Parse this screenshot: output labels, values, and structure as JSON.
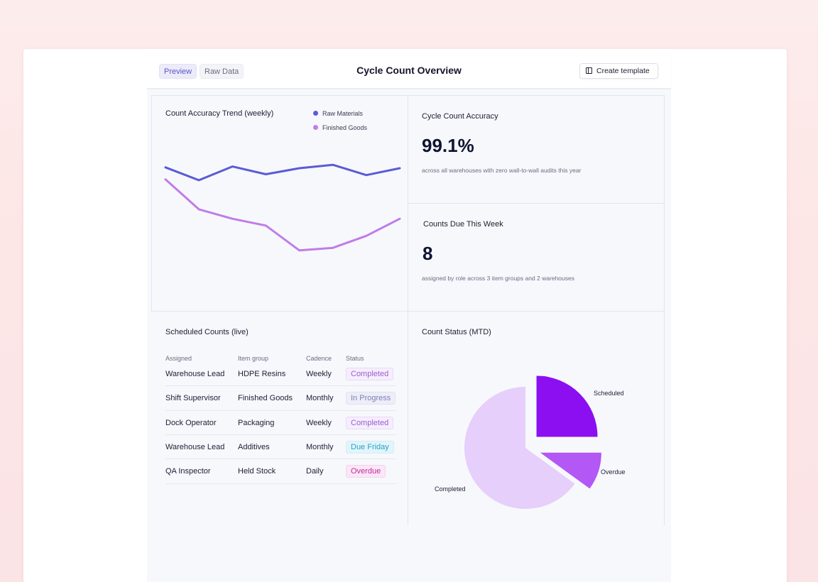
{
  "header": {
    "tabs": [
      {
        "label": "Preview",
        "active": true
      },
      {
        "label": "Raw Data",
        "active": false
      }
    ],
    "title": "Cycle Count Overview",
    "create_button": "Create template"
  },
  "trend": {
    "title": "Count Accuracy Trend (weekly)",
    "legend": [
      {
        "name": "Raw Materials",
        "color": "#5b5bd6"
      },
      {
        "name": "Finished Goods",
        "color": "#c07ce8"
      }
    ]
  },
  "kpi_accuracy": {
    "title": "Cycle Count Accuracy",
    "value": "99.1%",
    "sub": "across all warehouses with zero wall-to-wall audits this year"
  },
  "kpi_due": {
    "title": "Counts Due This Week",
    "value": "8",
    "sub": "assigned by role across 3 item groups and 2 warehouses"
  },
  "schedule": {
    "title": "Scheduled Counts (live)",
    "columns": [
      "Assigned",
      "Item group",
      "Cadence",
      "Status"
    ],
    "rows": [
      {
        "assigned": "Warehouse Lead",
        "group": "HDPE Resins",
        "cadence": "Weekly",
        "status": "Completed"
      },
      {
        "assigned": "Shift Supervisor",
        "group": "Finished Goods",
        "cadence": "Monthly",
        "status": "In Progress"
      },
      {
        "assigned": "Dock Operator",
        "group": "Packaging",
        "cadence": "Weekly",
        "status": "Completed"
      },
      {
        "assigned": "Warehouse Lead",
        "group": "Additives",
        "cadence": "Monthly",
        "status": "Due Friday"
      },
      {
        "assigned": "QA Inspector",
        "group": "Held Stock",
        "cadence": "Daily",
        "status": "Overdue"
      }
    ]
  },
  "status_pie": {
    "title": "Count Status (MTD)"
  },
  "chart_data": [
    {
      "type": "line",
      "x": [
        1,
        2,
        3,
        4,
        5,
        6,
        7,
        8
      ],
      "series": [
        {
          "name": "Raw Materials",
          "color": "#5b5bd6",
          "values": [
            0.82,
            0.67,
            0.83,
            0.74,
            0.81,
            0.85,
            0.73,
            0.81
          ]
        },
        {
          "name": "Finished Goods",
          "color": "#c07ce8",
          "values": [
            0.68,
            0.33,
            0.22,
            0.14,
            -0.15,
            -0.12,
            0.02,
            0.22
          ]
        }
      ],
      "title": "Count Accuracy Trend (weekly)",
      "grid": false,
      "legend": "top-right"
    },
    {
      "type": "pie",
      "title": "Count Status (MTD)",
      "slices": [
        {
          "label": "Scheduled",
          "value": 25,
          "color": "#8b0ff0",
          "exploded": true
        },
        {
          "label": "Overdue",
          "value": 10,
          "color": "#b357f5",
          "exploded": true
        },
        {
          "label": "Completed",
          "value": 65,
          "color": "#e6cffb",
          "exploded": false
        }
      ]
    }
  ],
  "badge_styles": {
    "Completed": {
      "bg": "#f6eefd",
      "fg": "#9a5fcf",
      "border": "#ead8fb"
    },
    "In Progress": {
      "bg": "#eeeef8",
      "fg": "#7c7fb5",
      "border": "#e1e2f2"
    },
    "Due Friday": {
      "bg": "#e2f5fb",
      "fg": "#2b9fc8",
      "border": "#cfeef8"
    },
    "Overdue": {
      "bg": "#fbe7f6",
      "fg": "#c02c9e",
      "border": "#f5d2ee"
    }
  }
}
